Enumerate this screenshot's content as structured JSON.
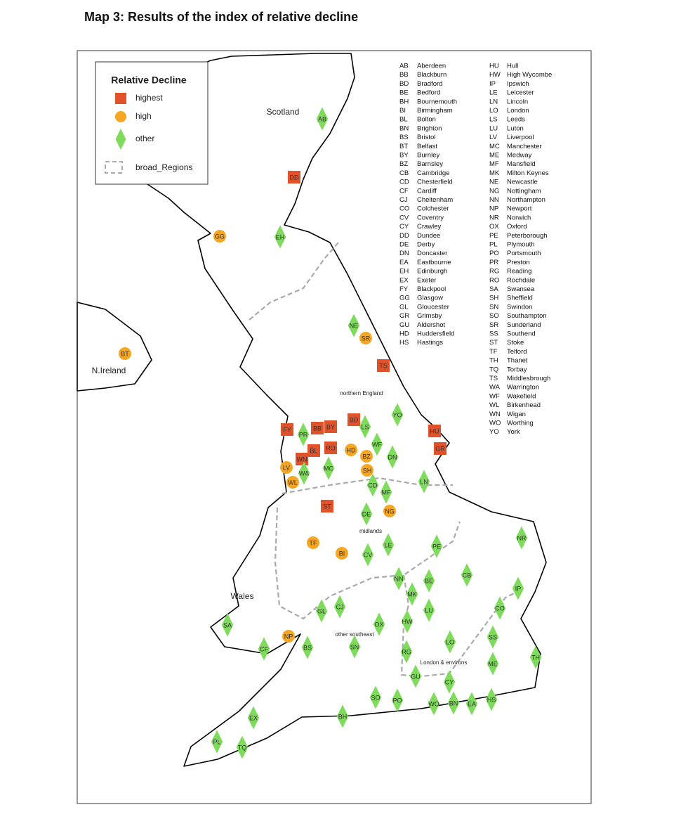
{
  "title": "Map 3: Results of the index of relative decline",
  "legend": {
    "title": "Relative Decline",
    "items": [
      {
        "label": "highest",
        "shape": "square",
        "color": "#e0522a"
      },
      {
        "label": "high",
        "shape": "circle",
        "color": "#f5a623"
      },
      {
        "label": "other",
        "shape": "diamond",
        "color": "#7edb5b"
      }
    ],
    "regions_label": "broad_Regions"
  },
  "regions": [
    "Scotland",
    "N.Ireland",
    "northern England",
    "midlands",
    "Wales",
    "other southeast",
    "London & environs"
  ],
  "markers": [
    {
      "code": "AB",
      "category": "other"
    },
    {
      "code": "DD",
      "category": "highest"
    },
    {
      "code": "GG",
      "category": "high"
    },
    {
      "code": "EH",
      "category": "other"
    },
    {
      "code": "NE",
      "category": "other"
    },
    {
      "code": "SR",
      "category": "high"
    },
    {
      "code": "BT",
      "category": "high"
    },
    {
      "code": "TS",
      "category": "highest"
    },
    {
      "code": "YO",
      "category": "other"
    },
    {
      "code": "BD",
      "category": "highest"
    },
    {
      "code": "FY",
      "category": "highest"
    },
    {
      "code": "PR",
      "category": "other"
    },
    {
      "code": "BB",
      "category": "highest"
    },
    {
      "code": "BY",
      "category": "highest"
    },
    {
      "code": "LS",
      "category": "other"
    },
    {
      "code": "HU",
      "category": "highest"
    },
    {
      "code": "WF",
      "category": "other"
    },
    {
      "code": "GR",
      "category": "highest"
    },
    {
      "code": "BL",
      "category": "highest"
    },
    {
      "code": "RO",
      "category": "highest"
    },
    {
      "code": "HD",
      "category": "high"
    },
    {
      "code": "BZ",
      "category": "high"
    },
    {
      "code": "DN",
      "category": "other"
    },
    {
      "code": "WN",
      "category": "highest"
    },
    {
      "code": "LV",
      "category": "high"
    },
    {
      "code": "WA",
      "category": "other"
    },
    {
      "code": "MC",
      "category": "other"
    },
    {
      "code": "SH",
      "category": "high"
    },
    {
      "code": "WL",
      "category": "high"
    },
    {
      "code": "LN",
      "category": "other"
    },
    {
      "code": "CD",
      "category": "other"
    },
    {
      "code": "MF",
      "category": "other"
    },
    {
      "code": "ST",
      "category": "highest"
    },
    {
      "code": "DE",
      "category": "other"
    },
    {
      "code": "NG",
      "category": "high"
    },
    {
      "code": "NR",
      "category": "other"
    },
    {
      "code": "TF",
      "category": "high"
    },
    {
      "code": "LE",
      "category": "other"
    },
    {
      "code": "PE",
      "category": "other"
    },
    {
      "code": "BI",
      "category": "high"
    },
    {
      "code": "CV",
      "category": "other"
    },
    {
      "code": "CB",
      "category": "other"
    },
    {
      "code": "NN",
      "category": "other"
    },
    {
      "code": "BE",
      "category": "other"
    },
    {
      "code": "IP",
      "category": "other"
    },
    {
      "code": "MK",
      "category": "other"
    },
    {
      "code": "LU",
      "category": "other"
    },
    {
      "code": "CJ",
      "category": "other"
    },
    {
      "code": "GL",
      "category": "other"
    },
    {
      "code": "CO",
      "category": "other"
    },
    {
      "code": "HW",
      "category": "other"
    },
    {
      "code": "SA",
      "category": "other"
    },
    {
      "code": "OX",
      "category": "other"
    },
    {
      "code": "NP",
      "category": "high"
    },
    {
      "code": "SS",
      "category": "other"
    },
    {
      "code": "LO",
      "category": "other"
    },
    {
      "code": "CF",
      "category": "other"
    },
    {
      "code": "BS",
      "category": "other"
    },
    {
      "code": "SN",
      "category": "other"
    },
    {
      "code": "RG",
      "category": "other"
    },
    {
      "code": "ME",
      "category": "other"
    },
    {
      "code": "TH",
      "category": "other"
    },
    {
      "code": "GU",
      "category": "other"
    },
    {
      "code": "CY",
      "category": "other"
    },
    {
      "code": "SO",
      "category": "other"
    },
    {
      "code": "PO",
      "category": "other"
    },
    {
      "code": "WO",
      "category": "other"
    },
    {
      "code": "BN",
      "category": "other"
    },
    {
      "code": "EA",
      "category": "other"
    },
    {
      "code": "HS",
      "category": "other"
    },
    {
      "code": "EX",
      "category": "other"
    },
    {
      "code": "BH",
      "category": "other"
    },
    {
      "code": "PL",
      "category": "other"
    },
    {
      "code": "TQ",
      "category": "other"
    }
  ],
  "key": {
    "columns": [
      [
        [
          "AB",
          "Aberdeen"
        ],
        [
          "BB",
          "Blackburn"
        ],
        [
          "BD",
          "Bradford"
        ],
        [
          "BE",
          "Bedford"
        ],
        [
          "BH",
          "Bournemouth"
        ],
        [
          "BI",
          "Birmingham"
        ],
        [
          "BL",
          "Bolton"
        ],
        [
          "BN",
          "Brighton"
        ],
        [
          "BS",
          "Bristol"
        ],
        [
          "BT",
          "Belfast"
        ],
        [
          "BY",
          "Burnley"
        ],
        [
          "BZ",
          "Barnsley"
        ],
        [
          "CB",
          "Cambridge"
        ],
        [
          "CD",
          "Chesterfield"
        ],
        [
          "CF",
          "Cardiff"
        ],
        [
          "CJ",
          "Cheltenham"
        ],
        [
          "CO",
          "Colchester"
        ],
        [
          "CV",
          "Coventry"
        ],
        [
          "CY",
          "Crawley"
        ],
        [
          "DD",
          "Dundee"
        ],
        [
          "DE",
          "Derby"
        ],
        [
          "DN",
          "Doncaster"
        ],
        [
          "EA",
          "Eastbourne"
        ],
        [
          "EH",
          "Edinburgh"
        ],
        [
          "EX",
          "Exeter"
        ],
        [
          "FY",
          "Blackpool"
        ],
        [
          "GG",
          "Glasgow"
        ],
        [
          "GL",
          "Gloucester"
        ],
        [
          "GR",
          "Grimsby"
        ],
        [
          "GU",
          "Aldershot"
        ],
        [
          "HD",
          "Huddersfield"
        ],
        [
          "HS",
          "Hastings"
        ]
      ],
      [
        [
          "HU",
          "Hull"
        ],
        [
          "HW",
          "High Wycombe"
        ],
        [
          "IP",
          "Ipswich"
        ],
        [
          "LE",
          "Leicester"
        ],
        [
          "LN",
          "Lincoln"
        ],
        [
          "LO",
          "London"
        ],
        [
          "LS",
          "Leeds"
        ],
        [
          "LU",
          "Luton"
        ],
        [
          "LV",
          "Liverpool"
        ],
        [
          "MC",
          "Manchester"
        ],
        [
          "ME",
          "Medway"
        ],
        [
          "MF",
          "Mansfield"
        ],
        [
          "MK",
          "Milton Keynes"
        ],
        [
          "NE",
          "Newcastle"
        ],
        [
          "NG",
          "Nottingham"
        ],
        [
          "NN",
          "Northampton"
        ],
        [
          "NP",
          "Newport"
        ],
        [
          "NR",
          "Norwich"
        ],
        [
          "OX",
          "Oxford"
        ],
        [
          "PE",
          "Peterborough"
        ],
        [
          "PL",
          "Plymouth"
        ],
        [
          "PO",
          "Portsmouth"
        ],
        [
          "PR",
          "Preston"
        ],
        [
          "RG",
          "Reading"
        ],
        [
          "RO",
          "Rochdale"
        ],
        [
          "SA",
          "Swansea"
        ],
        [
          "SH",
          "Sheffield"
        ],
        [
          "SN",
          "Swindon"
        ],
        [
          "SO",
          "Southampton"
        ],
        [
          "SR",
          "Sunderland"
        ],
        [
          "SS",
          "Southend"
        ],
        [
          "ST",
          "Stoke"
        ],
        [
          "TF",
          "Telford"
        ],
        [
          "TH",
          "Thanet"
        ],
        [
          "TQ",
          "Torbay"
        ],
        [
          "TS",
          "Middlesbrough"
        ],
        [
          "WA",
          "Warrington"
        ],
        [
          "WF",
          "Wakefield"
        ],
        [
          "WL",
          "Birkenhead"
        ],
        [
          "WN",
          "Wigan"
        ],
        [
          "WO",
          "Worthing"
        ],
        [
          "YO",
          "York"
        ]
      ]
    ]
  }
}
